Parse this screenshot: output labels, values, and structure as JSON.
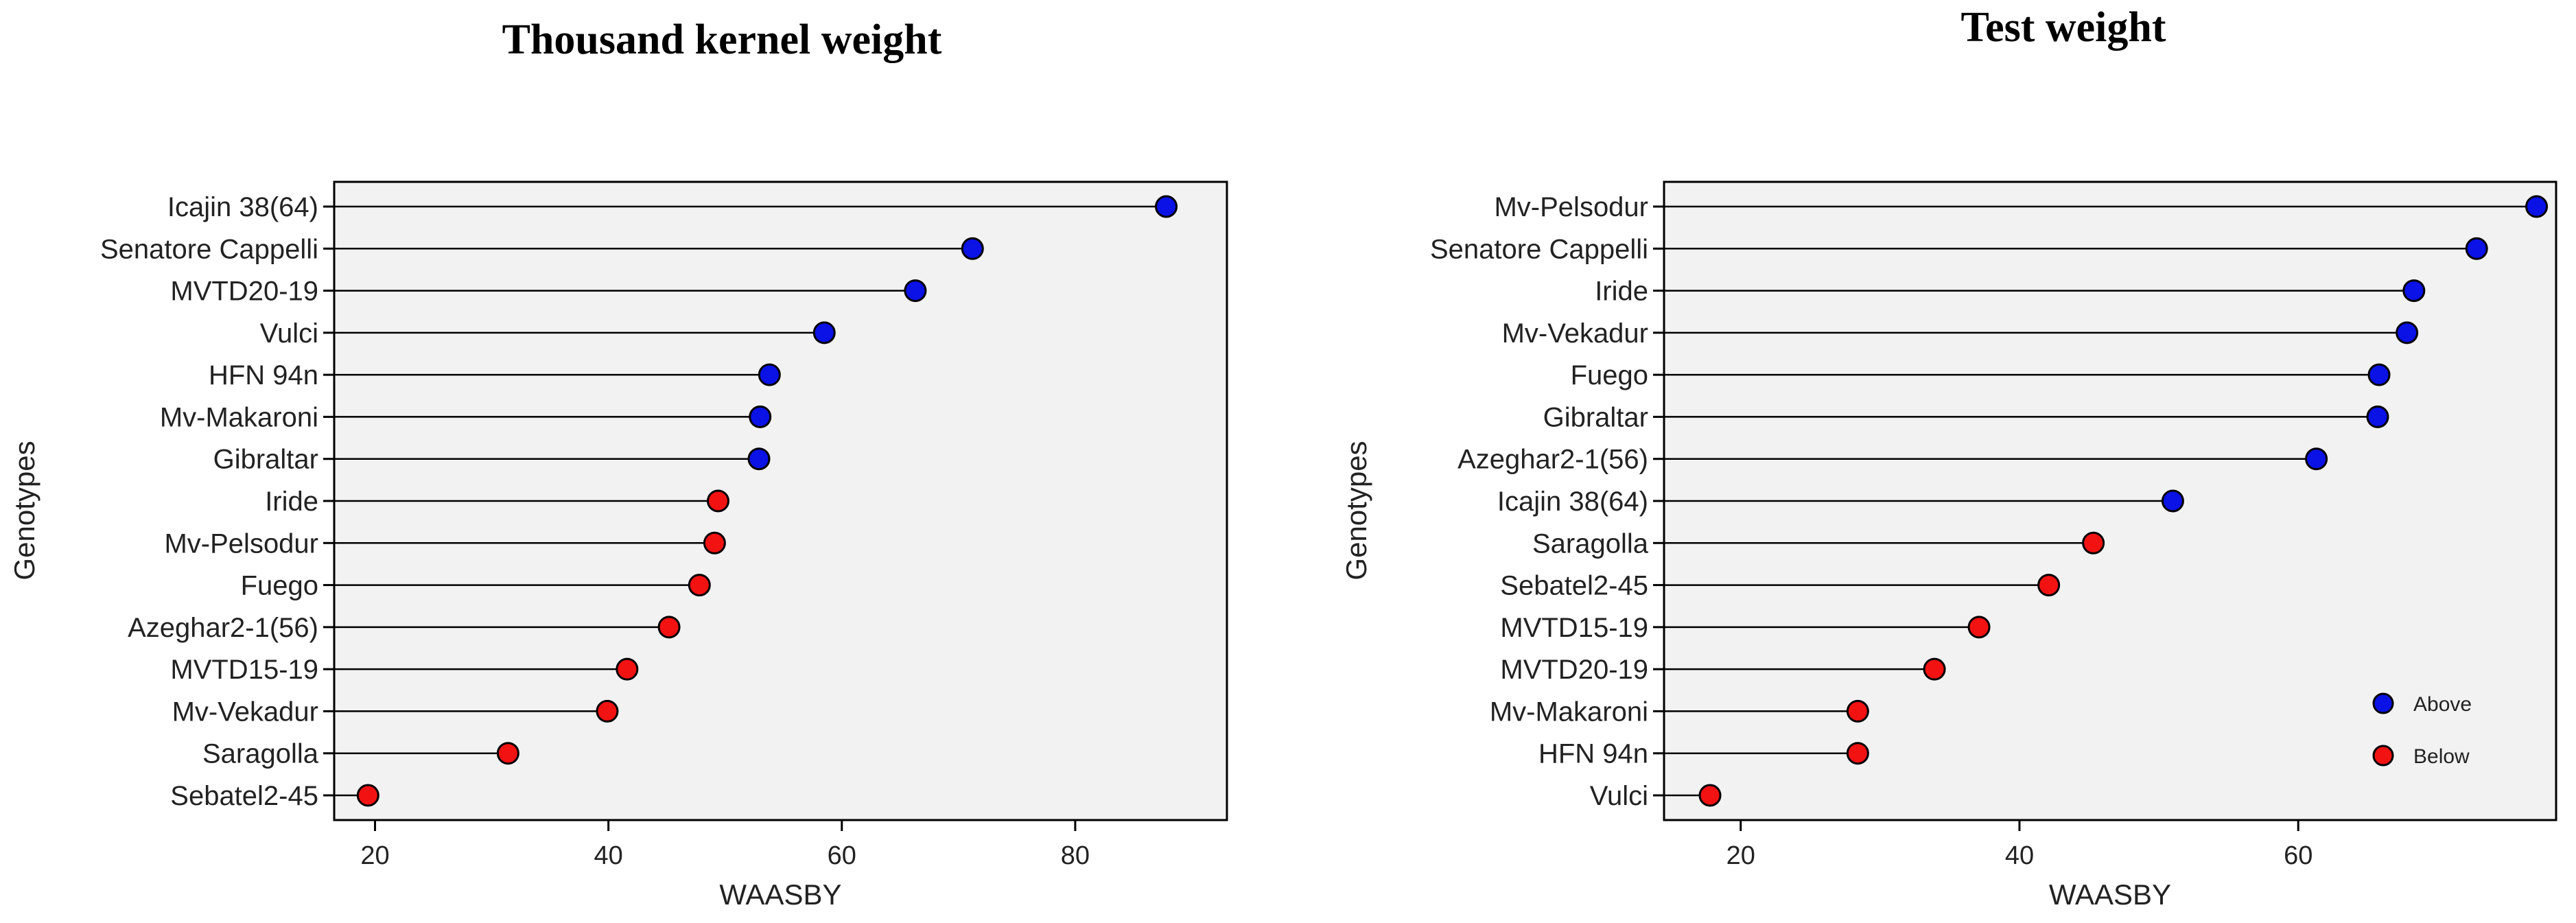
{
  "chart_data": [
    {
      "type": "lollipop",
      "title": "Thousand kernel weight",
      "xlabel": "WAASBY",
      "ylabel": "Genotypes",
      "xlim": [
        16.5,
        93
      ],
      "xticks": [
        20,
        40,
        60,
        80
      ],
      "categories": [
        "Icajin 38(64)",
        "Senatore Cappelli",
        "MVTD20-19",
        "Vulci",
        "HFN 94n",
        "Mv-Makaroni",
        "Gibraltar",
        "Iride",
        "Mv-Pelsodur",
        "Fuego",
        "Azeghar2-1(56)",
        "MVTD15-19",
        "Mv-Vekadur",
        "Saragolla",
        "Sebatel2-45"
      ],
      "values": [
        87.8,
        71.2,
        66.3,
        58.5,
        53.8,
        53.0,
        52.9,
        49.4,
        49.1,
        47.8,
        45.2,
        41.6,
        39.9,
        31.4,
        19.4
      ],
      "groups": [
        "Above",
        "Above",
        "Above",
        "Above",
        "Above",
        "Above",
        "Above",
        "Below",
        "Below",
        "Below",
        "Below",
        "Below",
        "Below",
        "Below",
        "Below"
      ],
      "legend": null
    },
    {
      "type": "lollipop",
      "title": "Test weight",
      "xlabel": "WAASBY",
      "ylabel": "Genotypes",
      "xlim": [
        14.5,
        78.5
      ],
      "xticks": [
        20,
        40,
        60
      ],
      "categories": [
        "Mv-Pelsodur",
        "Senatore Cappelli",
        "Iride",
        "Mv-Vekadur",
        "Fuego",
        "Gibraltar",
        "Azeghar2-1(56)",
        "Icajin 38(64)",
        "Saragolla",
        "Sebatel2-45",
        "MVTD15-19",
        "MVTD20-19",
        "Mv-Makaroni",
        "HFN 94n",
        "Vulci"
      ],
      "values": [
        77.1,
        72.8,
        68.3,
        67.8,
        65.8,
        65.7,
        61.3,
        51.0,
        45.3,
        42.1,
        37.1,
        33.9,
        28.4,
        28.4,
        17.8
      ],
      "groups": [
        "Above",
        "Above",
        "Above",
        "Above",
        "Above",
        "Above",
        "Above",
        "Above",
        "Below",
        "Below",
        "Below",
        "Below",
        "Below",
        "Below",
        "Below"
      ],
      "legend": {
        "position": "bottom-right",
        "entries": [
          "Above",
          "Below"
        ]
      }
    }
  ],
  "colors": {
    "Above": "#0a12e6",
    "Below": "#f21212",
    "panel": "#f2f2f2"
  }
}
